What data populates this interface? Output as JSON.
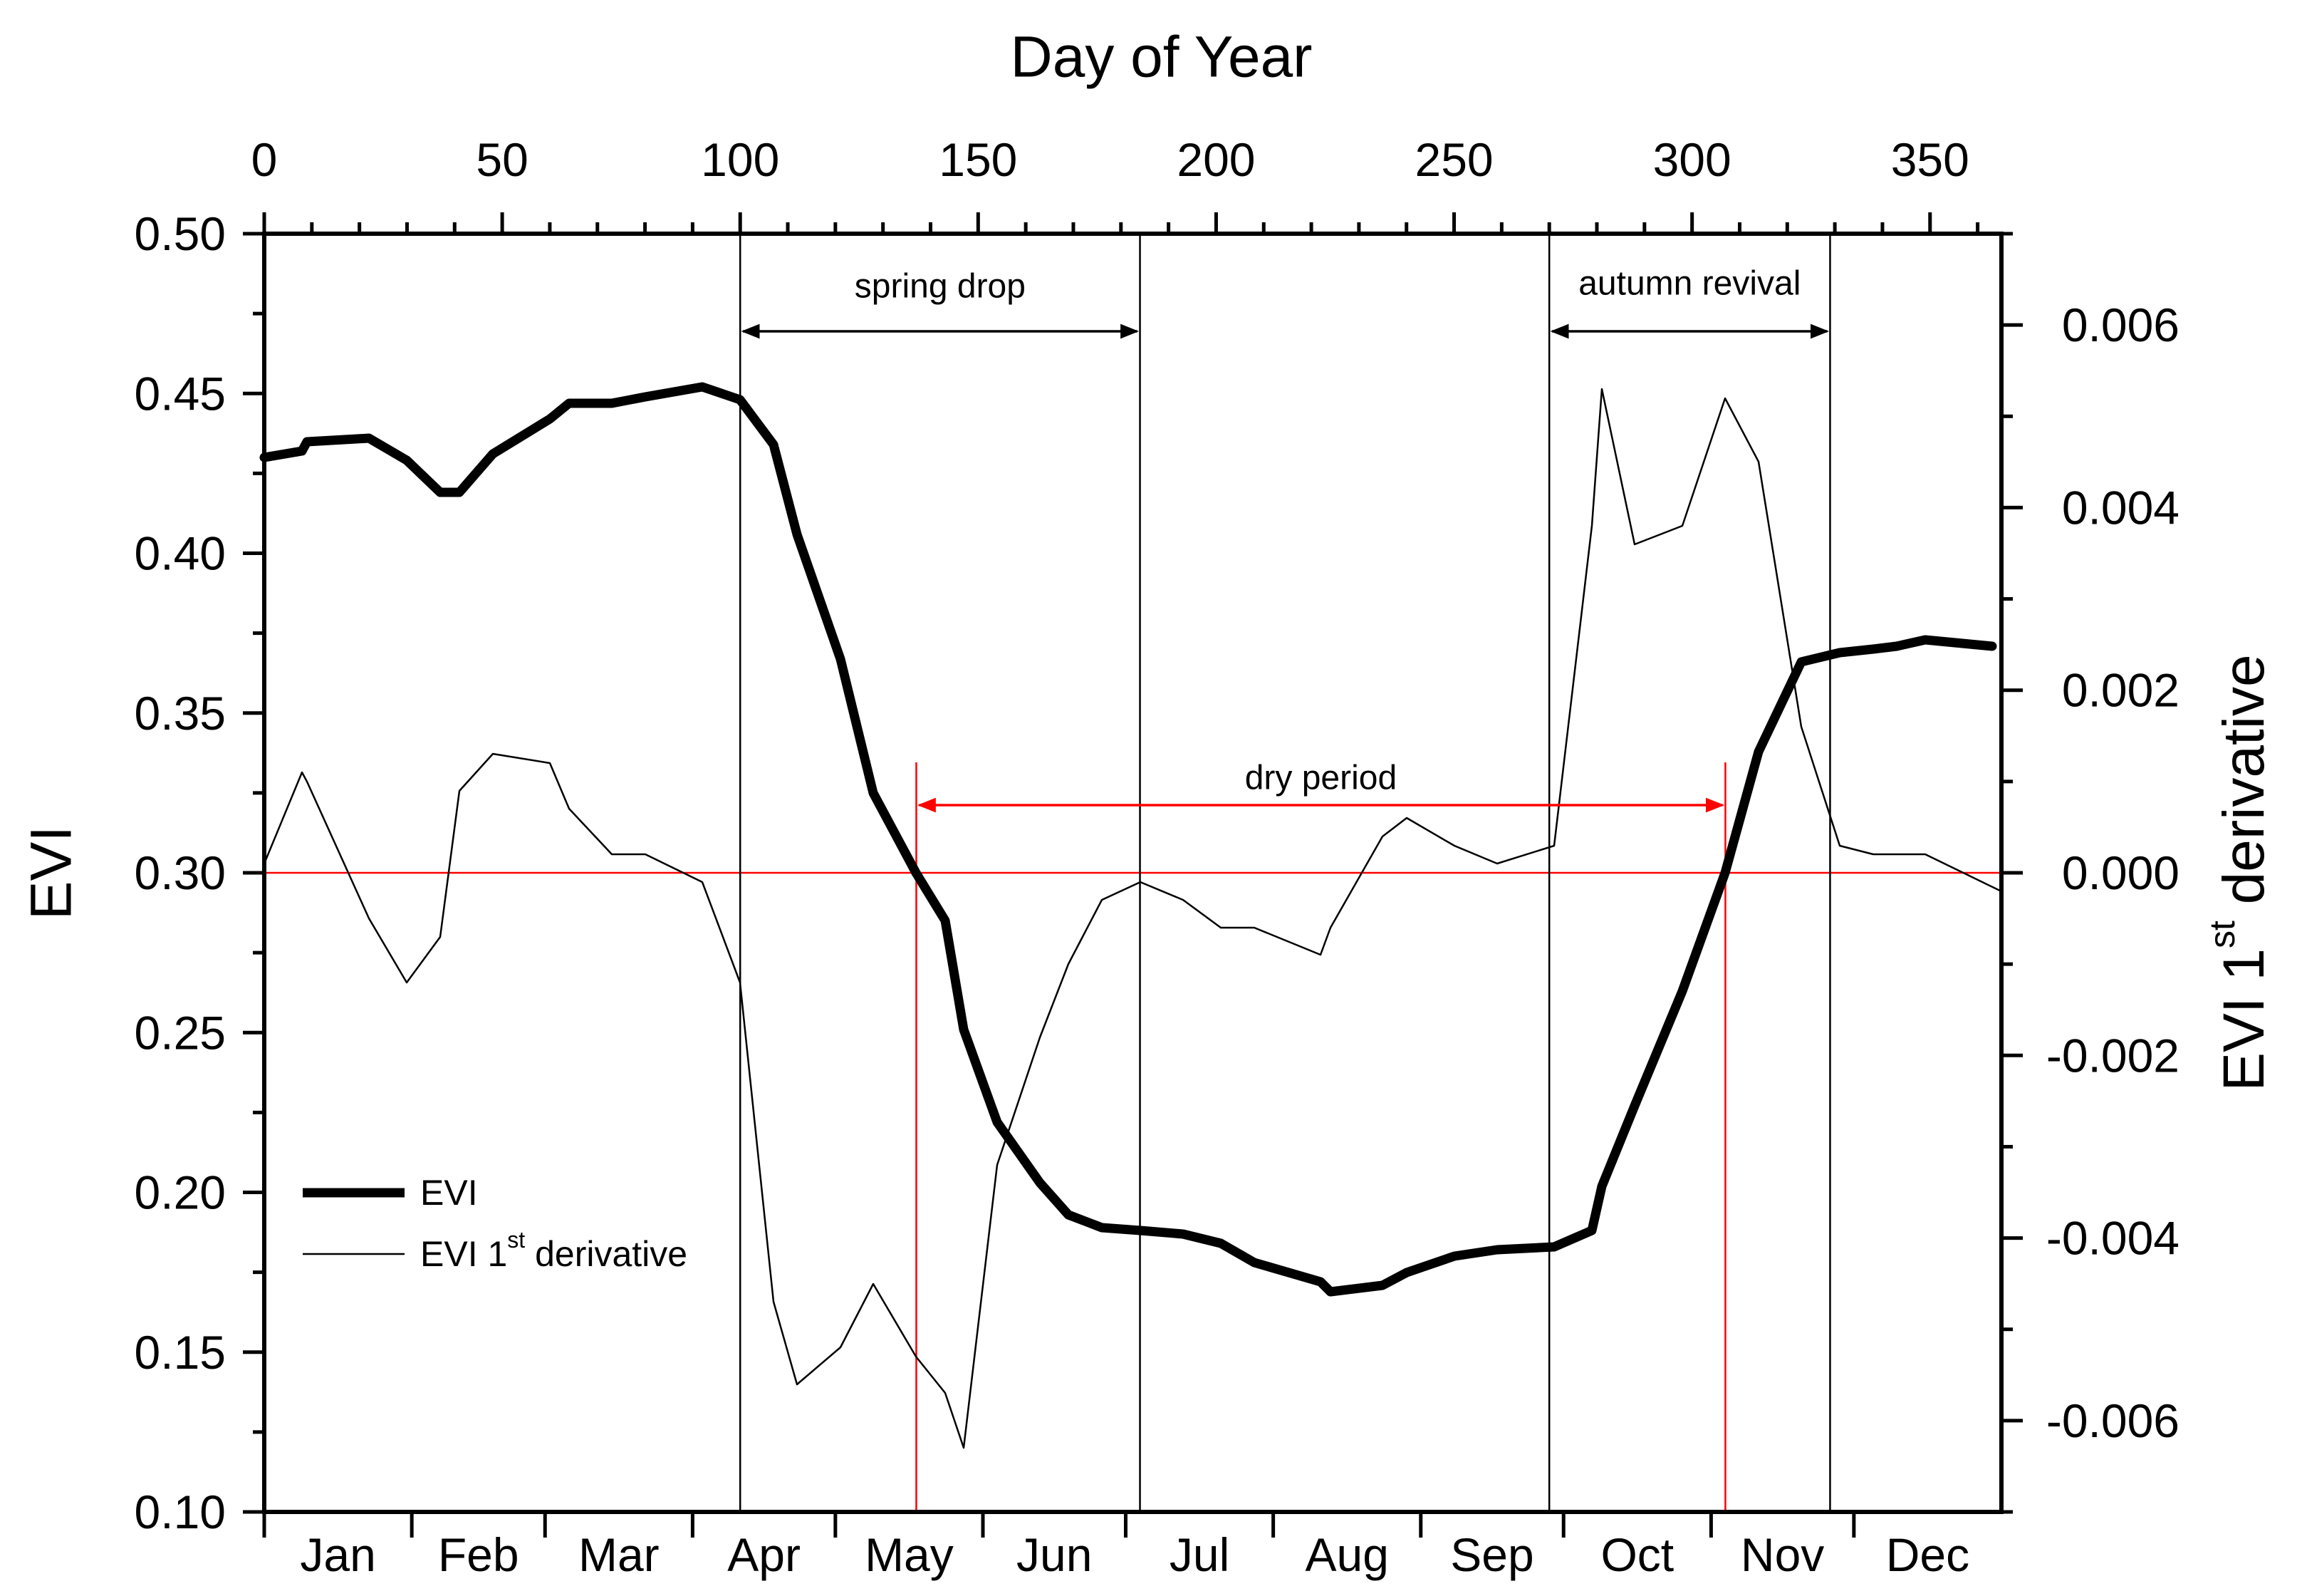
{
  "chart_data": {
    "type": "line",
    "title": "",
    "x_axis_top": {
      "label": "Day of Year",
      "range": [
        0,
        365
      ],
      "ticks": [
        0,
        50,
        100,
        150,
        200,
        250,
        300,
        350
      ],
      "tick_labels": [
        "0",
        "50",
        "100",
        "150",
        "200",
        "250",
        "300",
        "350"
      ]
    },
    "x_axis_bottom": {
      "month_labels": [
        "Jan",
        "Feb",
        "Mar",
        "Apr",
        "May",
        "Jun",
        "Jul",
        "Aug",
        "Sep",
        "Oct",
        "Nov",
        "Dec"
      ],
      "month_boundaries_doy": [
        31,
        59,
        90,
        120,
        151,
        181,
        212,
        243,
        273,
        304,
        334
      ]
    },
    "y_axis_left": {
      "label": "EVI",
      "range": [
        0.1,
        0.5
      ],
      "ticks": [
        0.1,
        0.15,
        0.2,
        0.25,
        0.3,
        0.35,
        0.4,
        0.45,
        0.5
      ],
      "tick_labels": [
        "0.10",
        "0.15",
        "0.20",
        "0.25",
        "0.30",
        "0.35",
        "0.40",
        "0.45",
        "0.50"
      ]
    },
    "y_axis_right": {
      "label_main": "EVI 1",
      "label_sup": "st",
      "label_tail": " derivative",
      "range": [
        -0.007,
        0.007
      ],
      "ticks": [
        -0.006,
        -0.004,
        -0.002,
        0.0,
        0.002,
        0.004,
        0.006
      ],
      "tick_labels": [
        "-0.006",
        "-0.004",
        "-0.002",
        "0.000",
        "0.002",
        "0.004",
        "0.006"
      ]
    },
    "series": [
      {
        "name": "EVI",
        "axis": "left",
        "style": "thick",
        "points": [
          [
            0,
            0.43
          ],
          [
            8,
            0.432
          ],
          [
            9,
            0.435
          ],
          [
            22,
            0.436
          ],
          [
            30,
            0.429
          ],
          [
            37,
            0.419
          ],
          [
            41,
            0.419
          ],
          [
            48,
            0.431
          ],
          [
            60,
            0.442
          ],
          [
            64,
            0.447
          ],
          [
            73,
            0.447
          ],
          [
            80,
            0.449
          ],
          [
            92,
            0.452
          ],
          [
            100,
            0.448
          ],
          [
            107,
            0.434
          ],
          [
            112,
            0.406
          ],
          [
            121,
            0.367
          ],
          [
            128,
            0.325
          ],
          [
            137,
            0.3
          ],
          [
            143,
            0.285
          ],
          [
            147,
            0.251
          ],
          [
            154,
            0.222
          ],
          [
            163,
            0.203
          ],
          [
            169,
            0.193
          ],
          [
            176,
            0.189
          ],
          [
            184,
            0.188
          ],
          [
            193,
            0.187
          ],
          [
            201,
            0.184
          ],
          [
            208,
            0.178
          ],
          [
            222,
            0.172
          ],
          [
            224,
            0.169
          ],
          [
            235,
            0.171
          ],
          [
            240,
            0.175
          ],
          [
            250,
            0.18
          ],
          [
            259,
            0.182
          ],
          [
            271,
            0.183
          ],
          [
            279,
            0.188
          ],
          [
            281,
            0.202
          ],
          [
            288,
            0.227
          ],
          [
            298,
            0.263
          ],
          [
            307,
            0.3
          ],
          [
            314,
            0.338
          ],
          [
            323,
            0.366
          ],
          [
            331,
            0.369
          ],
          [
            338,
            0.37
          ],
          [
            343,
            0.371
          ],
          [
            349,
            0.373
          ],
          [
            363,
            0.371
          ]
        ]
      },
      {
        "name": "EVI 1st derivative",
        "axis": "right",
        "style": "thin",
        "points": [
          [
            0,
            0.0001
          ],
          [
            8,
            0.0011
          ],
          [
            9,
            0.001
          ],
          [
            22,
            -0.0005
          ],
          [
            30,
            -0.0012
          ],
          [
            37,
            -0.0007
          ],
          [
            41,
            0.0009
          ],
          [
            48,
            0.0013
          ],
          [
            60,
            0.0012
          ],
          [
            64,
            0.0007
          ],
          [
            73,
            0.0002
          ],
          [
            80,
            0.0002
          ],
          [
            92,
            -0.0001
          ],
          [
            100,
            -0.0012
          ],
          [
            107,
            -0.0047
          ],
          [
            112,
            -0.0056
          ],
          [
            121,
            -0.0052
          ],
          [
            128,
            -0.0045
          ],
          [
            137,
            -0.0053
          ],
          [
            143,
            -0.0057
          ],
          [
            147,
            -0.0063
          ],
          [
            154,
            -0.0032
          ],
          [
            163,
            -0.0018
          ],
          [
            169,
            -0.001
          ],
          [
            176,
            -0.0003
          ],
          [
            184,
            -0.0001
          ],
          [
            193,
            -0.0003
          ],
          [
            201,
            -0.0006
          ],
          [
            208,
            -0.0006
          ],
          [
            222,
            -0.0009
          ],
          [
            224,
            -0.0006
          ],
          [
            235,
            0.0004
          ],
          [
            240,
            0.0006
          ],
          [
            250,
            0.0003
          ],
          [
            259,
            0.0001
          ],
          [
            271,
            0.0003
          ],
          [
            279,
            0.0038
          ],
          [
            281,
            0.0053
          ],
          [
            288,
            0.0036
          ],
          [
            298,
            0.0038
          ],
          [
            307,
            0.0052
          ],
          [
            314,
            0.0045
          ],
          [
            323,
            0.0016
          ],
          [
            331,
            0.0003
          ],
          [
            338,
            0.0002
          ],
          [
            343,
            0.0002
          ],
          [
            349,
            0.0002
          ],
          [
            365,
            -0.0002
          ]
        ]
      }
    ],
    "reference_lines": {
      "horizontal_red_evi": 0.3,
      "vertical_black_doy": [
        100,
        184,
        270,
        329
      ],
      "vertical_red_doy": [
        137,
        307
      ]
    },
    "annotations": [
      {
        "text": "spring drop",
        "from_doy": 100,
        "to_doy": 184,
        "color": "#000000"
      },
      {
        "text": "autumn revival",
        "from_doy": 270,
        "to_doy": 329,
        "color": "#000000"
      },
      {
        "text": "dry period",
        "from_doy": 137,
        "to_doy": 307,
        "color": "#ff0000"
      }
    ],
    "legend": {
      "position": "bottom-left",
      "entries": [
        {
          "label": "EVI",
          "style": "thick"
        },
        {
          "label_main": "EVI 1",
          "label_sup": "st",
          "label_tail": " derivative",
          "style": "thin"
        }
      ]
    }
  }
}
